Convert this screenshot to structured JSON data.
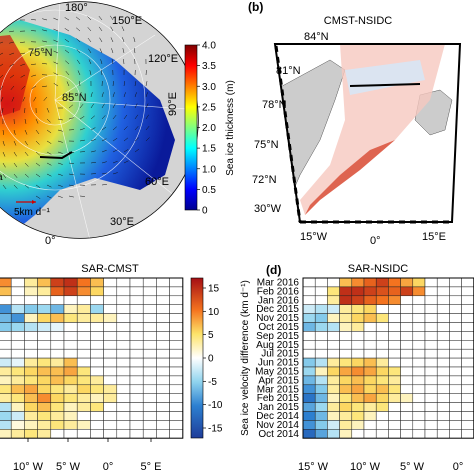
{
  "panel_a": {
    "lon_labels": {
      "top": "180°",
      "ne": "150°E",
      "e1": "120°E",
      "e2": "90°E",
      "se1": "60°E",
      "se2": "30°E",
      "bottom": "0°"
    },
    "lat_labels": {
      "l75": "75°N",
      "l85": "85°N"
    },
    "scale_label": "5km d⁻¹",
    "colorbar": {
      "label": "Sea ice thickness (m)",
      "ticks": [
        "4.0",
        "3.5",
        "3.0",
        "2.5",
        "2.0",
        "1.5",
        "1.0",
        "0.5",
        "0"
      ],
      "min": 0,
      "max": 4.0
    }
  },
  "panel_b": {
    "letter": "(b)",
    "title": "CMST-NSIDC",
    "lat_labels": [
      "84°N",
      "81°N",
      "78°N",
      "75°N",
      "72°N"
    ],
    "lon_labels": [
      "30°W",
      "15°W",
      "0°",
      "15°E"
    ]
  },
  "panel_c": {
    "title": "SAR-CMST",
    "x_ticks": [
      "10° W",
      "5° W",
      "0°",
      "5° E"
    ]
  },
  "panel_d": {
    "letter": "(d)",
    "title": "SAR-NSIDC",
    "x_ticks": [
      "15° W",
      "10° W",
      "5° W",
      "0°"
    ],
    "months": [
      "Mar 2016",
      "Feb 2016",
      "Jan 2016",
      "Dec 2015",
      "Nov 2015",
      "Oct 2015",
      "Sep 2015",
      "Aug 2015",
      "Jul 2015",
      "Jun 2015",
      "May 2015",
      "Apr 2015",
      "Mar 2015",
      "Feb 2015",
      "Jan 2015",
      "Dec 2014",
      "Nov 2014",
      "Oct 2014"
    ]
  },
  "velocity_colorbar": {
    "label": "Sea ice velocity difference (km d⁻¹)",
    "ticks": [
      "15",
      "10",
      "5",
      "0",
      "-5",
      "-10",
      "-15"
    ],
    "min": -15,
    "max": 15
  },
  "chart_data": [
    {
      "type": "heatmap",
      "title": "SAR-CMST",
      "xlabel": "",
      "ylabel": "",
      "rows": [
        "Mar 2016",
        "Feb 2016",
        "Jan 2016",
        "Dec 2015",
        "Nov 2015",
        "Oct 2015",
        "Sep 2015",
        "Aug 2015",
        "Jul 2015",
        "Jun 2015",
        "May 2015",
        "Apr 2015",
        "Mar 2015",
        "Feb 2015",
        "Jan 2015",
        "Dec 2014",
        "Nov 2014",
        "Oct 2014"
      ],
      "x_ticks": [
        "10° W",
        "5° W",
        "0°",
        "5° E"
      ],
      "clim": [
        -15,
        15
      ],
      "values": [
        [
          8,
          null,
          3,
          6,
          12,
          13,
          9,
          6,
          null,
          null,
          null,
          null,
          null,
          null
        ],
        [
          6,
          null,
          2,
          3,
          10,
          12,
          8,
          5,
          null,
          null,
          null,
          null,
          null,
          null
        ],
        [
          null,
          null,
          null,
          null,
          null,
          null,
          null,
          null,
          null,
          null,
          null,
          null,
          null,
          null
        ],
        [
          -8,
          -3,
          -5,
          -4,
          -6,
          2,
          3,
          -4,
          null,
          null,
          null,
          null,
          null,
          null
        ],
        [
          -6,
          -8,
          2,
          5,
          6,
          4,
          3,
          3,
          2,
          null,
          null,
          null,
          null,
          null
        ],
        [
          -5,
          -4,
          -3,
          -2,
          -1,
          null,
          null,
          null,
          null,
          null,
          null,
          null,
          null,
          null
        ],
        [
          null,
          null,
          null,
          null,
          null,
          null,
          null,
          null,
          null,
          null,
          null,
          null,
          null,
          null
        ],
        [
          null,
          null,
          null,
          null,
          null,
          null,
          null,
          null,
          null,
          null,
          null,
          null,
          null,
          null
        ],
        [
          null,
          null,
          null,
          null,
          null,
          null,
          null,
          null,
          null,
          null,
          null,
          null,
          null,
          null
        ],
        [
          -2,
          -1,
          3,
          4,
          3,
          6,
          null,
          null,
          null,
          null,
          null,
          null,
          null,
          null
        ],
        [
          3,
          4,
          5,
          6,
          6,
          7,
          4,
          null,
          null,
          null,
          null,
          null,
          null,
          null
        ],
        [
          2,
          3,
          4,
          5,
          6,
          5,
          4,
          3,
          null,
          null,
          null,
          null,
          null,
          null
        ],
        [
          4,
          6,
          7,
          5,
          4,
          3,
          5,
          4,
          3,
          null,
          null,
          null,
          null,
          null
        ],
        [
          3,
          4,
          6,
          8,
          5,
          4,
          3,
          2,
          3,
          null,
          null,
          null,
          null,
          null
        ],
        [
          -3,
          2,
          5,
          6,
          4,
          2,
          3,
          4,
          null,
          null,
          null,
          null,
          null,
          null
        ],
        [
          -4,
          -2,
          3,
          4,
          3,
          2,
          null,
          null,
          null,
          null,
          null,
          null,
          null,
          null
        ],
        [
          -3,
          1,
          2,
          3,
          4,
          3,
          2,
          null,
          null,
          null,
          null,
          null,
          null,
          null
        ],
        [
          2,
          3,
          4,
          3,
          null,
          null,
          null,
          null,
          null,
          null,
          null,
          null,
          null,
          null
        ]
      ]
    },
    {
      "type": "heatmap",
      "title": "SAR-NSIDC",
      "xlabel": "",
      "ylabel": "",
      "rows": [
        "Mar 2016",
        "Feb 2016",
        "Jan 2016",
        "Dec 2015",
        "Nov 2015",
        "Oct 2015",
        "Sep 2015",
        "Aug 2015",
        "Jul 2015",
        "Jun 2015",
        "May 2015",
        "Apr 2015",
        "Mar 2015",
        "Feb 2015",
        "Jan 2015",
        "Dec 2014",
        "Nov 2014",
        "Oct 2014"
      ],
      "x_ticks": [
        "15° W",
        "10° W",
        "5° W",
        "0°"
      ],
      "clim": [
        -15,
        15
      ],
      "values": [
        [
          null,
          null,
          null,
          6,
          8,
          10,
          12,
          9,
          7,
          5,
          null,
          null,
          null,
          null
        ],
        [
          null,
          null,
          4,
          13,
          13,
          12,
          11,
          10,
          12,
          8,
          null,
          null,
          null,
          null
        ],
        [
          null,
          null,
          3,
          13,
          12,
          10,
          9,
          8,
          null,
          null,
          null,
          null,
          null,
          null
        ],
        [
          -2,
          -3,
          -2,
          3,
          4,
          5,
          null,
          null,
          null,
          null,
          null,
          null,
          null,
          null
        ],
        [
          -4,
          -5,
          2,
          3,
          5,
          6,
          4,
          null,
          null,
          null,
          null,
          null,
          null,
          null
        ],
        [
          -6,
          -4,
          -3,
          2,
          3,
          null,
          null,
          null,
          null,
          null,
          null,
          null,
          null,
          null
        ],
        [
          null,
          null,
          null,
          null,
          null,
          null,
          null,
          null,
          null,
          null,
          null,
          null,
          null,
          null
        ],
        [
          null,
          null,
          null,
          null,
          null,
          null,
          null,
          null,
          null,
          null,
          null,
          null,
          null,
          null
        ],
        [
          null,
          null,
          null,
          null,
          null,
          null,
          null,
          null,
          null,
          null,
          null,
          null,
          null,
          null
        ],
        [
          -5,
          -3,
          3,
          4,
          5,
          6,
          3,
          null,
          null,
          null,
          null,
          null,
          null,
          null
        ],
        [
          -4,
          2,
          5,
          7,
          8,
          7,
          5,
          4,
          null,
          null,
          null,
          null,
          null,
          null
        ],
        [
          -6,
          -3,
          3,
          5,
          6,
          5,
          4,
          3,
          null,
          null,
          null,
          null,
          null,
          null
        ],
        [
          -8,
          -5,
          3,
          6,
          7,
          5,
          6,
          4,
          null,
          null,
          null,
          null,
          null,
          null
        ],
        [
          -10,
          -6,
          2,
          4,
          6,
          7,
          5,
          3,
          2,
          null,
          null,
          null,
          null,
          null
        ],
        [
          -7,
          -4,
          3,
          5,
          4,
          3,
          4,
          null,
          null,
          null,
          null,
          null,
          null,
          null
        ],
        [
          -9,
          -6,
          2,
          3,
          4,
          2,
          null,
          null,
          null,
          null,
          null,
          null,
          null,
          null
        ],
        [
          -8,
          -5,
          -2,
          3,
          2,
          null,
          null,
          null,
          null,
          null,
          null,
          null,
          null,
          null
        ],
        [
          -11,
          -7,
          -3,
          2,
          null,
          null,
          null,
          null,
          null,
          null,
          null,
          null,
          null,
          null
        ]
      ]
    }
  ]
}
